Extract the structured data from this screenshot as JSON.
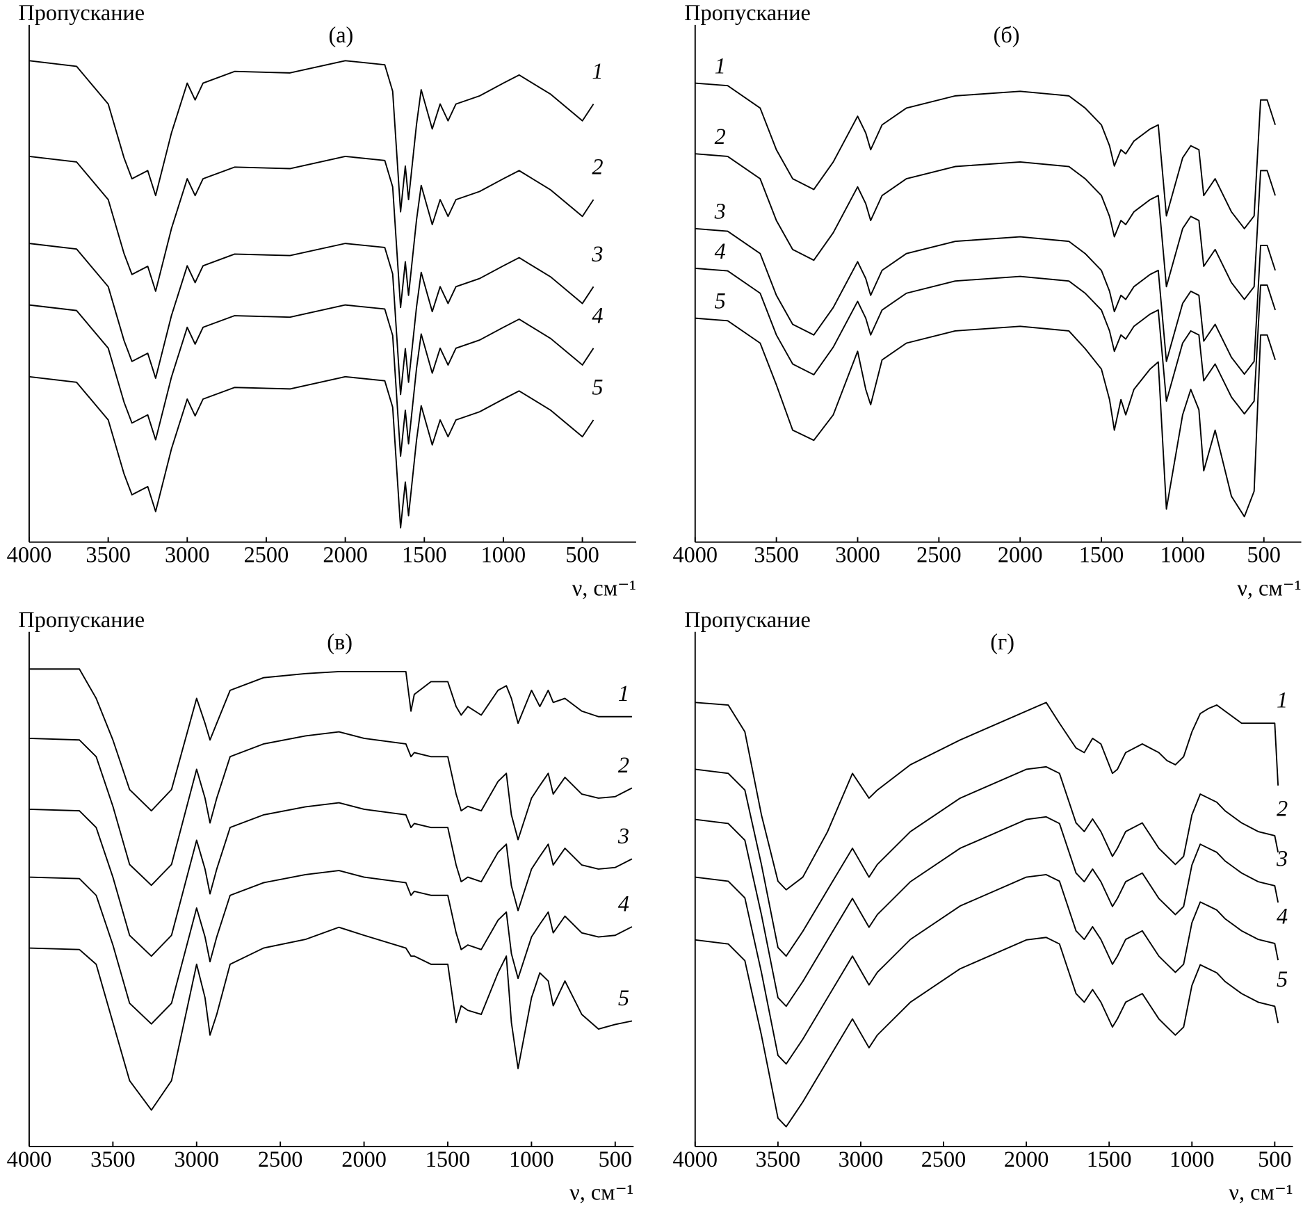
{
  "chart_data": [
    {
      "type": "line",
      "title": "(а)",
      "ylabel": "Пропускание",
      "xlabel": "ν, см⁻¹",
      "legend": "right",
      "xlim": [
        4000,
        160
      ],
      "ylim": [
        0,
        100
      ],
      "xticks": [
        4000,
        3500,
        3000,
        2500,
        2000,
        1500,
        1000,
        500
      ],
      "x": [
        4000,
        3700,
        3500,
        3400,
        3350,
        3250,
        3200,
        3100,
        3000,
        2950,
        2900,
        2700,
        2350,
        2000,
        1750,
        1700,
        1650,
        1620,
        1600,
        1550,
        1520,
        1450,
        1400,
        1350,
        1300,
        1150,
        1000,
        900,
        700,
        500,
        430
      ],
      "series": [
        {
          "name": "1",
          "color": "#000000",
          "values": [
            94.6,
            93.5,
            86.1,
            75.5,
            71.4,
            73.0,
            68.1,
            80.4,
            90.2,
            86.9,
            90.2,
            92.5,
            92.2,
            94.6,
            93.8,
            88.6,
            64.9,
            73.9,
            67.3,
            82.0,
            88.9,
            81.2,
            86.1,
            82.8,
            86.1,
            87.7,
            90.2,
            91.8,
            88.0,
            82.8,
            86.1
          ]
        },
        {
          "name": "2",
          "color": "#000000",
          "values": [
            75.8,
            74.7,
            67.3,
            56.7,
            52.6,
            54.2,
            49.3,
            61.6,
            71.4,
            68.1,
            71.4,
            73.7,
            73.4,
            75.8,
            75.0,
            69.8,
            46.1,
            55.1,
            48.5,
            63.2,
            70.1,
            62.4,
            67.3,
            64.0,
            67.3,
            68.9,
            71.4,
            73.0,
            69.2,
            64.0,
            67.3
          ]
        },
        {
          "name": "3",
          "color": "#000000",
          "values": [
            58.7,
            57.6,
            50.2,
            39.6,
            35.5,
            37.1,
            32.2,
            44.5,
            54.3,
            51.0,
            54.3,
            56.6,
            56.3,
            58.7,
            57.9,
            52.7,
            29.0,
            38.0,
            31.4,
            46.1,
            53.0,
            45.3,
            50.2,
            46.9,
            50.2,
            51.8,
            54.3,
            55.9,
            52.1,
            46.9,
            50.2
          ]
        },
        {
          "name": "4",
          "color": "#000000",
          "values": [
            46.6,
            45.5,
            38.1,
            27.5,
            23.4,
            25.0,
            20.1,
            32.4,
            42.2,
            38.9,
            42.2,
            44.5,
            44.2,
            46.6,
            45.8,
            40.6,
            16.9,
            25.9,
            19.3,
            34.0,
            40.9,
            33.2,
            38.1,
            34.8,
            38.1,
            39.7,
            42.2,
            43.8,
            40.0,
            34.8,
            38.1
          ]
        },
        {
          "name": "5",
          "color": "#000000",
          "values": [
            32.5,
            31.4,
            24.0,
            13.4,
            9.3,
            10.9,
            6.0,
            18.3,
            28.1,
            24.8,
            28.1,
            30.4,
            30.1,
            32.5,
            31.7,
            26.5,
            2.8,
            11.8,
            5.2,
            19.9,
            26.8,
            19.1,
            24.0,
            20.7,
            24.0,
            25.6,
            28.1,
            29.7,
            25.9,
            20.7,
            24.0
          ]
        }
      ]
    },
    {
      "type": "line",
      "title": "(б)",
      "ylabel": "Пропускание",
      "xlabel": "ν, см⁻¹",
      "legend": "left",
      "xlim": [
        4000,
        270
      ],
      "ylim": [
        0,
        100
      ],
      "xticks": [
        4000,
        3500,
        3000,
        2500,
        2000,
        1500,
        1000,
        500
      ],
      "x": [
        4000,
        3800,
        3600,
        3500,
        3400,
        3270,
        3150,
        3000,
        2950,
        2920,
        2850,
        2700,
        2400,
        2000,
        1700,
        1600,
        1500,
        1450,
        1420,
        1380,
        1350,
        1300,
        1200,
        1150,
        1100,
        1000,
        950,
        900,
        870,
        800,
        700,
        620,
        560,
        520,
        480,
        430
      ],
      "series": [
        {
          "name": "1",
          "color": "#000000",
          "values": [
            90.2,
            89.7,
            85.3,
            77.1,
            71.4,
            69.3,
            74.7,
            83.7,
            80.4,
            77.1,
            82.0,
            85.3,
            87.7,
            88.6,
            87.7,
            85.3,
            82.0,
            77.9,
            73.9,
            77.1,
            76.3,
            78.8,
            81.2,
            82.0,
            64.1,
            75.5,
            77.9,
            77.1,
            68.1,
            71.4,
            64.9,
            61.6,
            64.1,
            86.9,
            86.9,
            82.0
          ]
        },
        {
          "name": "2",
          "color": "#000000",
          "values": [
            76.3,
            75.8,
            71.4,
            63.2,
            57.5,
            55.4,
            60.8,
            69.8,
            66.5,
            63.2,
            68.1,
            71.4,
            73.8,
            74.7,
            73.8,
            71.4,
            68.1,
            64.0,
            60.0,
            63.2,
            62.4,
            64.9,
            67.3,
            68.1,
            50.2,
            61.6,
            64.0,
            63.2,
            54.2,
            57.5,
            51.0,
            47.7,
            50.2,
            73.0,
            73.0,
            68.1
          ]
        },
        {
          "name": "3",
          "color": "#000000",
          "values": [
            61.6,
            61.1,
            56.7,
            48.5,
            42.8,
            40.7,
            46.1,
            55.1,
            51.8,
            48.5,
            53.4,
            56.7,
            59.1,
            60.0,
            59.1,
            56.7,
            53.4,
            49.3,
            45.3,
            48.5,
            47.7,
            50.2,
            52.6,
            53.4,
            35.5,
            46.9,
            49.3,
            48.5,
            39.5,
            42.8,
            36.3,
            33.0,
            35.5,
            58.3,
            58.3,
            53.4
          ]
        },
        {
          "name": "4",
          "color": "#000000",
          "values": [
            53.8,
            53.3,
            48.9,
            40.7,
            35.0,
            32.9,
            38.3,
            47.3,
            44.0,
            40.7,
            45.6,
            48.9,
            51.3,
            52.2,
            51.3,
            48.9,
            45.6,
            41.5,
            37.5,
            40.7,
            39.9,
            42.4,
            44.8,
            45.6,
            27.7,
            39.1,
            41.5,
            40.7,
            31.7,
            35.0,
            28.5,
            25.2,
            27.7,
            50.5,
            50.5,
            45.6
          ]
        },
        {
          "name": "5",
          "color": "#000000",
          "values": [
            44.0,
            43.5,
            39.1,
            30.9,
            22.0,
            20.0,
            25.0,
            37.5,
            30.0,
            27.0,
            35.8,
            39.1,
            41.5,
            42.4,
            41.5,
            38.0,
            34.0,
            28.0,
            22.0,
            28.0,
            25.0,
            30.0,
            34.0,
            35.4,
            6.5,
            25.0,
            30.0,
            26.0,
            14.0,
            22.0,
            9.0,
            5.0,
            10.0,
            40.7,
            40.7,
            35.8
          ]
        }
      ]
    },
    {
      "type": "line",
      "title": "(в)",
      "ylabel": "Пропускание",
      "xlabel": "ν, см⁻¹",
      "legend": "right",
      "xlim": [
        4000,
        390
      ],
      "ylim": [
        0,
        100
      ],
      "xticks": [
        4000,
        3500,
        3000,
        2500,
        2000,
        1500,
        1000,
        500
      ],
      "x": [
        4000,
        3700,
        3600,
        3500,
        3400,
        3270,
        3150,
        3000,
        2950,
        2920,
        2880,
        2800,
        2600,
        2350,
        2150,
        2000,
        1750,
        1720,
        1700,
        1600,
        1500,
        1450,
        1420,
        1380,
        1300,
        1200,
        1150,
        1120,
        1080,
        1000,
        950,
        900,
        870,
        800,
        700,
        600,
        500,
        400
      ],
      "series": [
        {
          "name": "1",
          "color": "#000000",
          "values": [
            94.3,
            94.3,
            88.5,
            80.3,
            70.5,
            66.3,
            70.5,
            88.5,
            83.6,
            80.3,
            83.6,
            90.1,
            92.6,
            93.4,
            93.8,
            93.8,
            93.8,
            86.0,
            89.3,
            91.8,
            91.8,
            86.9,
            85.2,
            86.9,
            85.2,
            90.1,
            91.0,
            88.5,
            83.6,
            90.1,
            86.9,
            90.1,
            87.7,
            88.5,
            86.0,
            84.9,
            84.9,
            84.9
          ]
        },
        {
          "name": "2",
          "color": "#000000",
          "values": [
            80.6,
            80.3,
            77.0,
            67.2,
            55.7,
            51.6,
            55.7,
            74.5,
            68.8,
            63.9,
            68.8,
            77.0,
            79.5,
            81.1,
            81.9,
            80.6,
            79.5,
            77.0,
            77.8,
            77.0,
            77.0,
            69.6,
            66.3,
            67.2,
            66.3,
            72.1,
            73.7,
            65.5,
            60.6,
            68.8,
            71.3,
            73.7,
            69.6,
            72.9,
            69.6,
            68.8,
            69.1,
            70.8
          ]
        },
        {
          "name": "3",
          "color": "#000000",
          "values": [
            66.6,
            66.3,
            63.0,
            53.2,
            41.7,
            37.6,
            41.7,
            60.5,
            54.8,
            49.9,
            54.8,
            63.0,
            65.5,
            67.1,
            67.9,
            66.6,
            65.5,
            63.0,
            63.8,
            63.0,
            63.0,
            55.6,
            52.3,
            53.2,
            52.3,
            58.1,
            59.7,
            51.5,
            46.6,
            54.8,
            57.3,
            59.7,
            55.6,
            58.9,
            55.6,
            54.8,
            55.1,
            56.8
          ]
        },
        {
          "name": "4",
          "color": "#000000",
          "values": [
            53.2,
            52.9,
            49.6,
            39.8,
            28.3,
            24.2,
            28.3,
            47.1,
            41.4,
            36.5,
            41.4,
            49.6,
            52.1,
            53.7,
            54.5,
            53.2,
            52.1,
            49.6,
            50.4,
            49.6,
            49.6,
            42.2,
            38.9,
            39.8,
            38.9,
            44.7,
            46.3,
            38.1,
            33.2,
            41.4,
            43.9,
            46.3,
            42.2,
            45.5,
            42.2,
            41.4,
            41.7,
            43.4
          ]
        },
        {
          "name": "5",
          "color": "#000000",
          "values": [
            39.2,
            38.9,
            36.0,
            24.5,
            13.0,
            7.2,
            13.0,
            36.0,
            29.4,
            22.0,
            26.1,
            36.0,
            39.2,
            40.9,
            43.3,
            41.7,
            39.2,
            37.6,
            37.6,
            36.0,
            36.0,
            24.5,
            27.8,
            26.9,
            26.1,
            34.3,
            37.6,
            24.5,
            15.4,
            29.4,
            34.3,
            32.7,
            27.8,
            32.7,
            26.1,
            23.2,
            24.1,
            24.8
          ]
        }
      ]
    },
    {
      "type": "line",
      "title": "(г)",
      "ylabel": "Пропускание",
      "xlabel": "ν, см⁻¹",
      "legend": "right",
      "xlim": [
        4000,
        390
      ],
      "ylim": [
        0,
        100
      ],
      "xticks": [
        4000,
        3500,
        3000,
        2500,
        2000,
        1500,
        1000,
        500
      ],
      "x": [
        4000,
        3800,
        3700,
        3600,
        3500,
        3450,
        3350,
        3200,
        3050,
        2950,
        2900,
        2700,
        2400,
        2000,
        1880,
        1800,
        1700,
        1650,
        1600,
        1550,
        1480,
        1450,
        1400,
        1300,
        1200,
        1150,
        1100,
        1050,
        1000,
        950,
        900,
        850,
        800,
        700,
        600,
        500,
        480
      ],
      "series": [
        {
          "name": "1",
          "color": "#000000",
          "values": [
            87.7,
            87.2,
            81.9,
            65.5,
            52.4,
            50.7,
            53.2,
            62.2,
            73.7,
            68.8,
            70.4,
            75.4,
            80.3,
            86.0,
            87.7,
            83.6,
            78.7,
            77.8,
            80.6,
            79.5,
            73.7,
            74.5,
            77.8,
            79.5,
            77.8,
            76.2,
            75.4,
            77.0,
            81.9,
            85.5,
            86.5,
            87.2,
            86.0,
            83.6,
            83.6,
            83.6,
            71.3
          ]
        },
        {
          "name": "2",
          "color": "#000000",
          "values": [
            74.5,
            73.7,
            70.4,
            55.7,
            39.3,
            37.6,
            42.5,
            50.7,
            58.9,
            53.2,
            55.7,
            62.2,
            68.8,
            74.5,
            75.0,
            73.7,
            63.9,
            62.2,
            64.7,
            62.2,
            57.3,
            58.9,
            62.2,
            63.9,
            58.9,
            57.3,
            55.7,
            57.3,
            65.5,
            69.6,
            68.8,
            68.0,
            66.3,
            63.9,
            62.2,
            61.4,
            58.1
          ]
        },
        {
          "name": "3",
          "color": "#000000",
          "values": [
            64.6,
            63.8,
            60.5,
            45.8,
            29.4,
            27.7,
            32.6,
            40.8,
            49.0,
            43.3,
            45.8,
            52.3,
            58.9,
            64.6,
            65.1,
            63.8,
            54.0,
            52.3,
            54.8,
            52.3,
            47.4,
            49.0,
            52.3,
            54.0,
            49.0,
            47.4,
            45.8,
            47.4,
            55.6,
            59.7,
            58.9,
            58.1,
            56.4,
            54.0,
            52.3,
            51.5,
            48.2
          ]
        },
        {
          "name": "4",
          "color": "#000000",
          "values": [
            53.2,
            52.4,
            49.1,
            34.4,
            18.0,
            16.3,
            21.2,
            29.4,
            37.6,
            31.9,
            34.4,
            40.9,
            47.5,
            53.2,
            53.7,
            52.4,
            42.6,
            40.9,
            43.4,
            40.9,
            36.0,
            37.6,
            40.9,
            42.6,
            37.6,
            36.0,
            34.4,
            36.0,
            44.2,
            48.3,
            47.5,
            46.7,
            45.0,
            42.6,
            40.9,
            40.1,
            36.8
          ]
        },
        {
          "name": "5",
          "color": "#000000",
          "values": [
            40.8,
            40.0,
            36.7,
            22.0,
            5.6,
            3.9,
            8.8,
            17.0,
            25.2,
            19.5,
            22.0,
            28.5,
            35.1,
            40.8,
            41.3,
            40.0,
            30.2,
            28.5,
            31.0,
            28.5,
            23.6,
            25.2,
            28.5,
            30.2,
            25.2,
            23.6,
            22.0,
            23.6,
            31.8,
            35.9,
            35.1,
            34.3,
            32.6,
            30.2,
            28.5,
            27.7,
            24.4
          ]
        }
      ]
    }
  ]
}
